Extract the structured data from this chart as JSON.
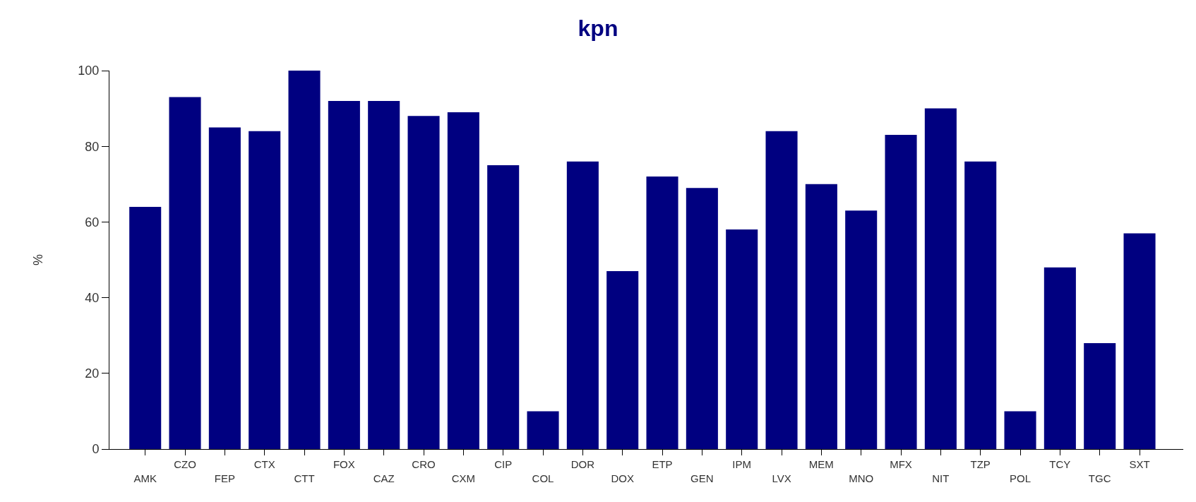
{
  "chart_data": {
    "type": "bar",
    "title": "kpn",
    "ylabel": "%",
    "categories": [
      "AMK",
      "CZO",
      "FEP",
      "CTX",
      "CTT",
      "FOX",
      "CAZ",
      "CRO",
      "CXM",
      "CIP",
      "COL",
      "DOR",
      "DOX",
      "ETP",
      "GEN",
      "IPM",
      "LVX",
      "MEM",
      "MNO",
      "MFX",
      "NIT",
      "TZP",
      "POL",
      "TCY",
      "TGC",
      "SXT"
    ],
    "values": [
      64,
      93,
      85,
      84,
      100,
      92,
      92,
      88,
      89,
      75,
      10,
      76,
      47,
      72,
      69,
      58,
      84,
      70,
      63,
      83,
      90,
      76,
      10,
      48,
      28,
      57
    ],
    "color": "#000080",
    "ylim": [
      0,
      100
    ],
    "yticks": [
      0,
      20,
      40,
      60,
      80,
      100
    ]
  }
}
